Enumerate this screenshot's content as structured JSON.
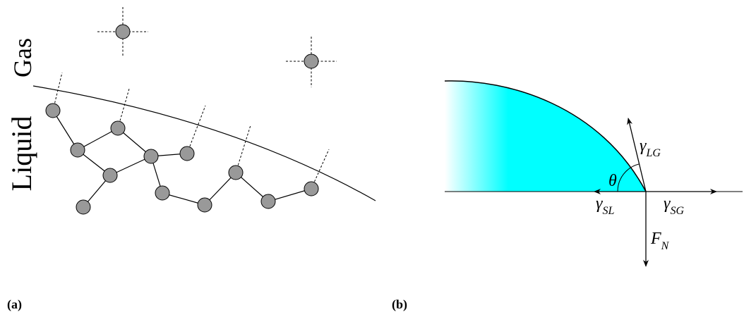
{
  "panel_a": {
    "label": "(a)",
    "gas_label": "Gas",
    "liquid_label": "Liquid"
  },
  "panel_b": {
    "label": "(b)",
    "theta": "θ",
    "gamma_lg": {
      "symbol": "γ",
      "subscript": "LG"
    },
    "gamma_sl": {
      "symbol": "γ",
      "subscript": "SL"
    },
    "gamma_sg": {
      "symbol": "γ",
      "subscript": "SG"
    },
    "normal_force": {
      "symbol": "F",
      "subscript": "N"
    }
  }
}
